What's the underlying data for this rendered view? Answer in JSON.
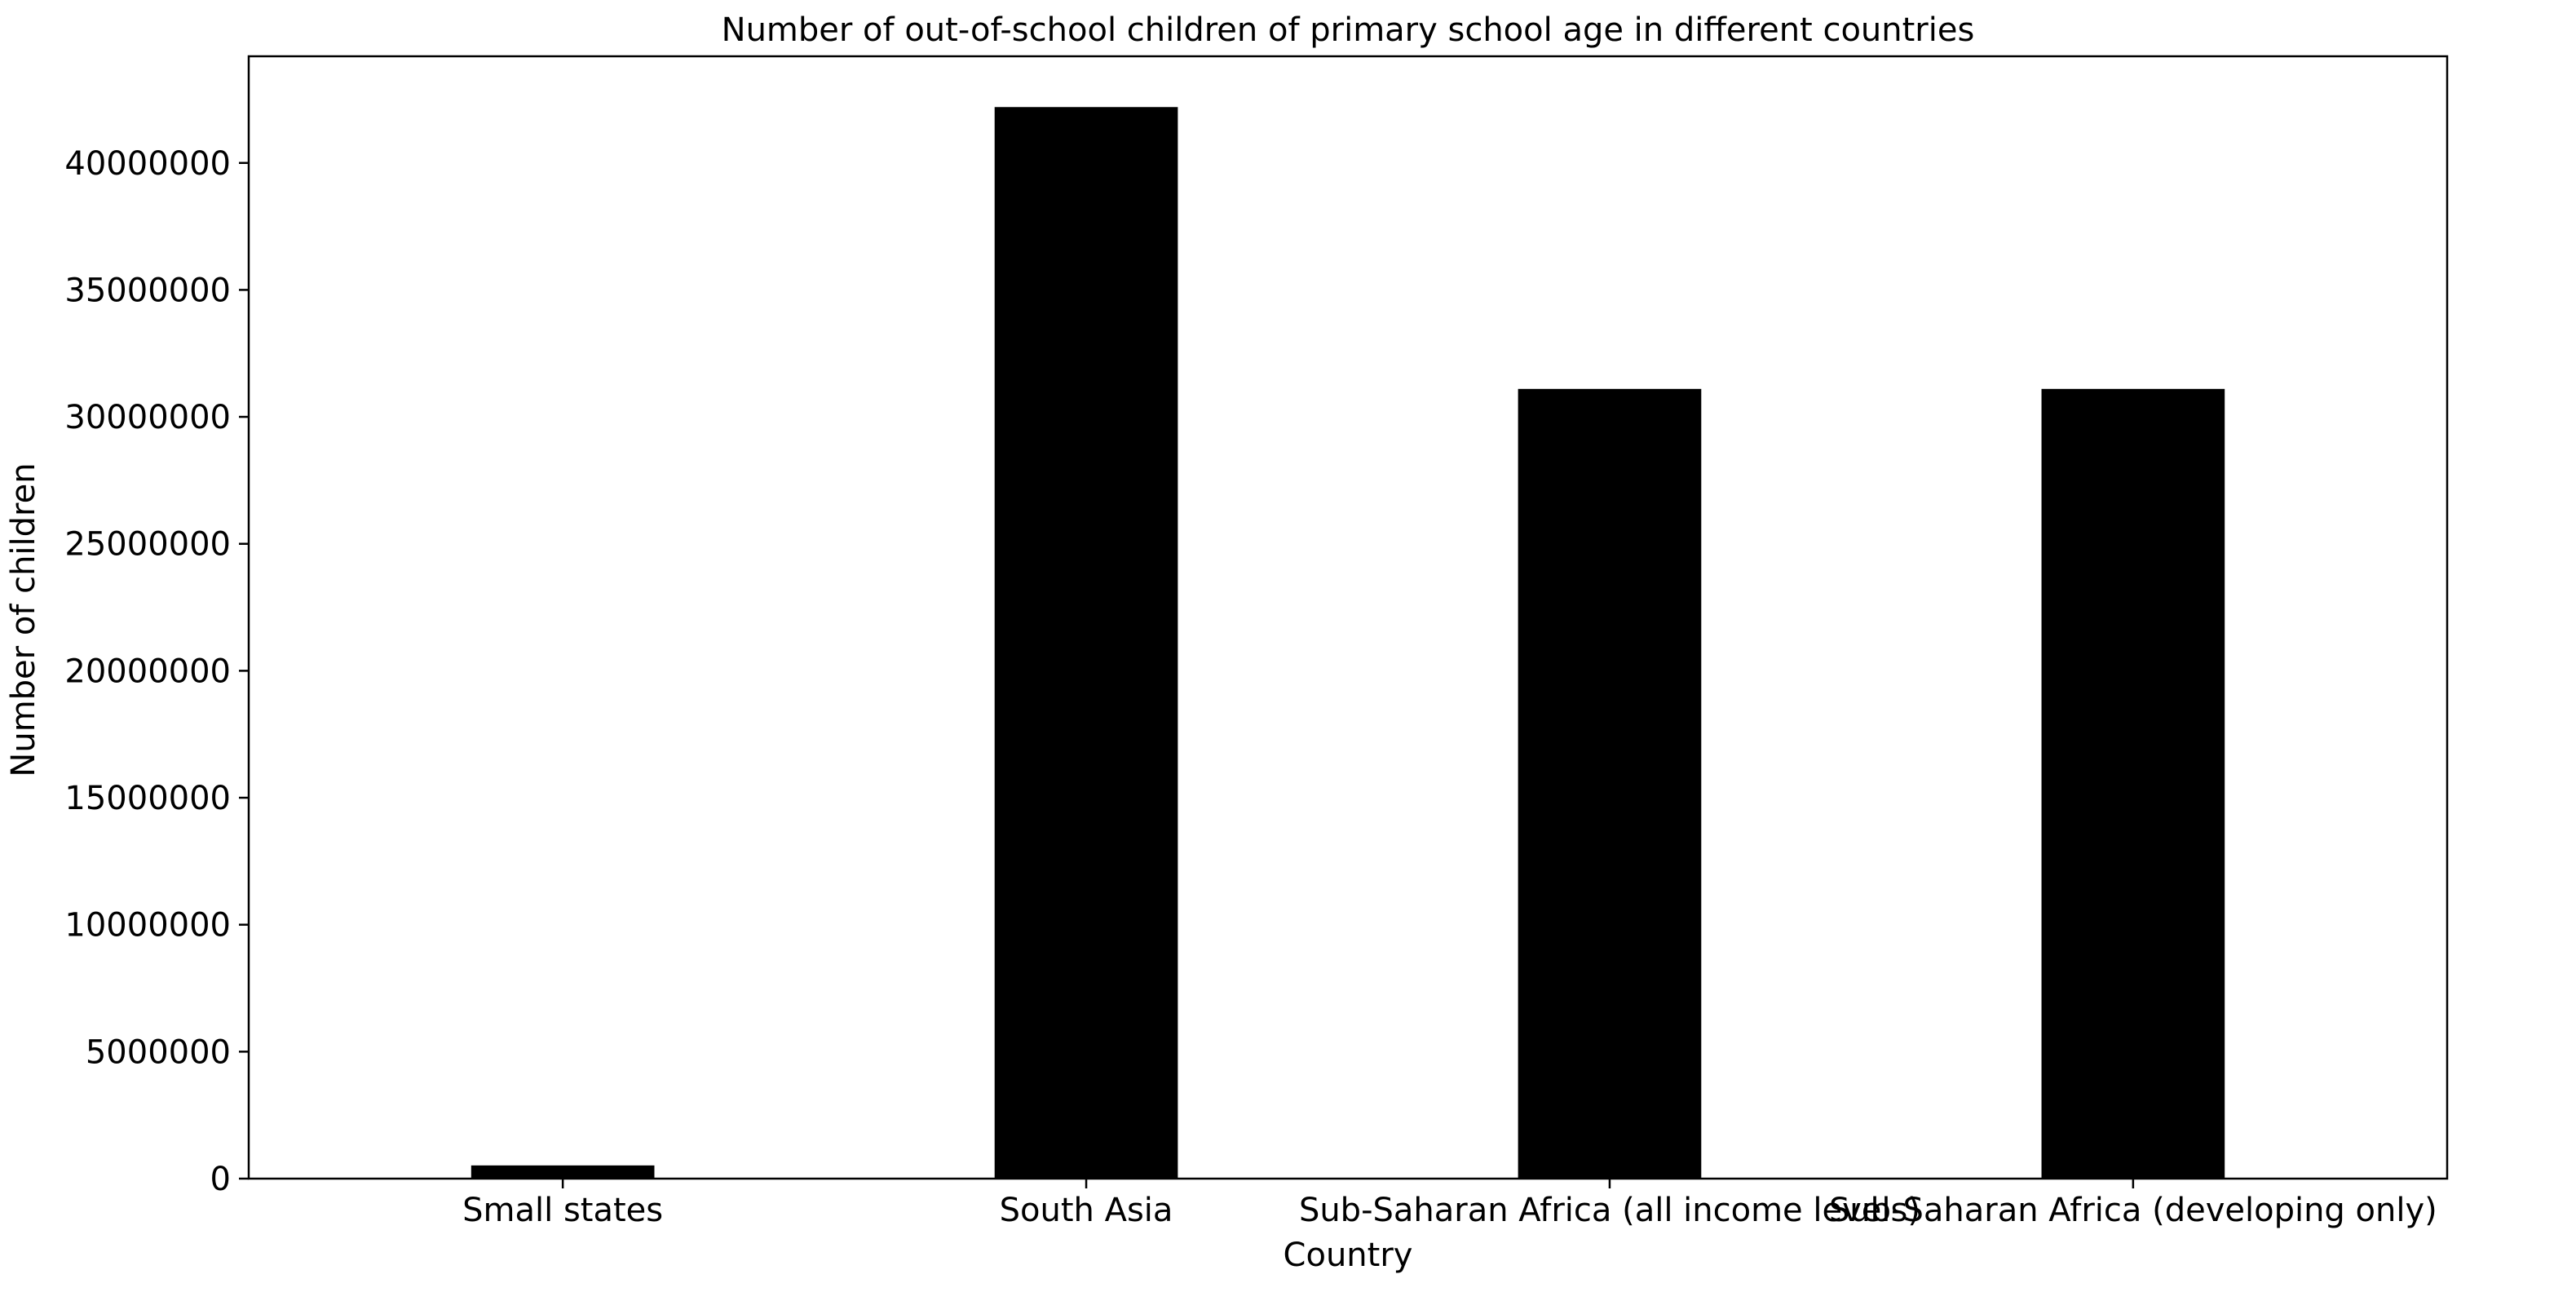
{
  "chart_data": {
    "type": "bar",
    "title": "Number of out-of-school children of primary school age in different countries",
    "xlabel": "Country",
    "ylabel": "Number of children",
    "categories": [
      "Small states",
      "South Asia",
      "Sub-Saharan Africa (all income levels)",
      "Sub-Saharan Africa (developing only)"
    ],
    "values": [
      520000,
      42200000,
      31100000,
      31100000
    ],
    "ylim": [
      0,
      44200000
    ],
    "yticks": [
      0,
      5000000,
      10000000,
      15000000,
      20000000,
      25000000,
      30000000,
      35000000,
      40000000
    ],
    "bar_color": "#000000",
    "grid": false,
    "legend": "none"
  }
}
